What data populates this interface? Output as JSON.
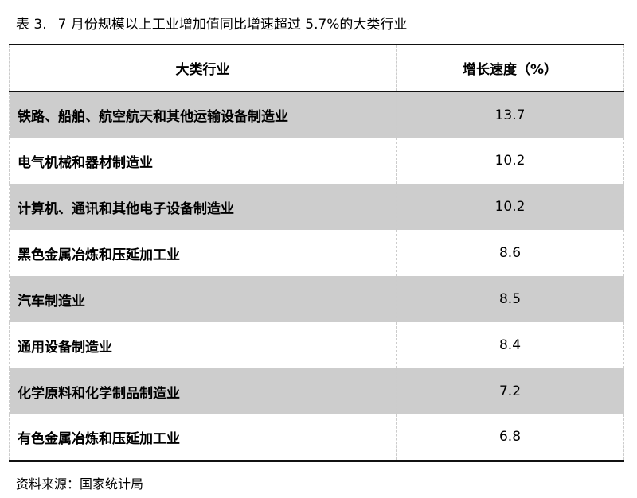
{
  "title": {
    "number": "表 3.",
    "text": "7 月份规模以上工业增加值同比增速超过 5.7%的大类行业"
  },
  "table": {
    "headers": [
      "大类行业",
      "增长速度（%）"
    ],
    "rows": [
      {
        "industry": "铁路、船舶、航空航天和其他运输设备制造业",
        "growth": "13.7"
      },
      {
        "industry": "电气机械和器材制造业",
        "growth": "10.2"
      },
      {
        "industry": "计算机、通讯和其他电子设备制造业",
        "growth": "10.2"
      },
      {
        "industry": "黑色金属冶炼和压延加工业",
        "growth": "8.6"
      },
      {
        "industry": "汽车制造业",
        "growth": "8.5"
      },
      {
        "industry": "通用设备制造业",
        "growth": "8.4"
      },
      {
        "industry": "化学原料和化学制品制造业",
        "growth": "7.2"
      },
      {
        "industry": "有色金属冶炼和压延加工业",
        "growth": "6.8"
      }
    ],
    "row_shading_color": "#cdcdcd"
  },
  "source": "资料来源：国家统计局"
}
